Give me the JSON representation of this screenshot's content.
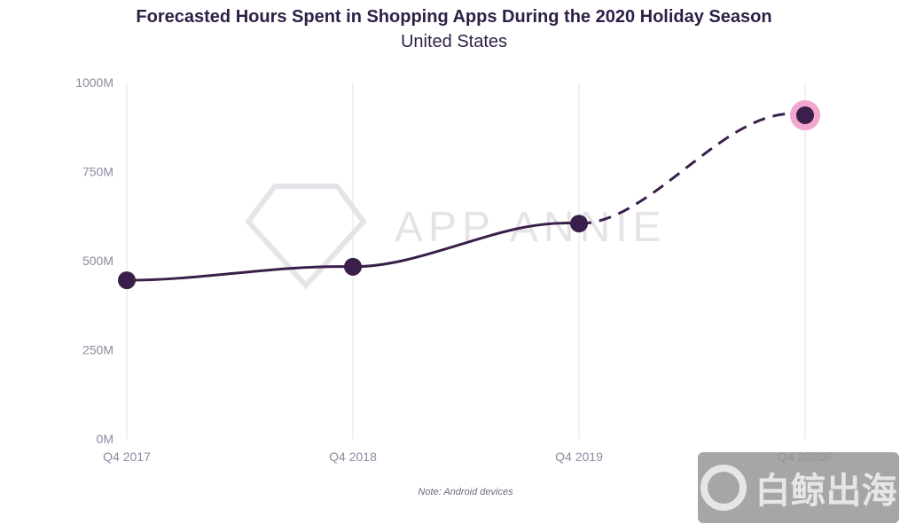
{
  "chart_data": {
    "type": "line",
    "title": "Forecasted Hours Spent in Shopping Apps During the 2020 Holiday Season",
    "subtitle": "United States",
    "categories": [
      "Q4 2017",
      "Q4 2018",
      "Q4 2019",
      "Q4 2020F"
    ],
    "values": [
      445000000,
      483000000,
      604000000,
      908000000
    ],
    "forecast_from_index": 2,
    "ylim": [
      0,
      1000000000
    ],
    "yticks": [
      {
        "v": 0,
        "label": "0M"
      },
      {
        "v": 250000000,
        "label": "250M"
      },
      {
        "v": 500000000,
        "label": "500M"
      },
      {
        "v": 750000000,
        "label": "750M"
      },
      {
        "v": 1000000000,
        "label": "1000M"
      }
    ],
    "grid": "vertical",
    "note": "Note: Android devices",
    "colors": {
      "line": "#3a1f4a",
      "highlight": "#f2a7cf",
      "grid": "#e3e3e8",
      "tick": "#8a8ca0"
    }
  },
  "watermarks": {
    "center": "APP ANNIE",
    "corner": "白鲸出海"
  }
}
